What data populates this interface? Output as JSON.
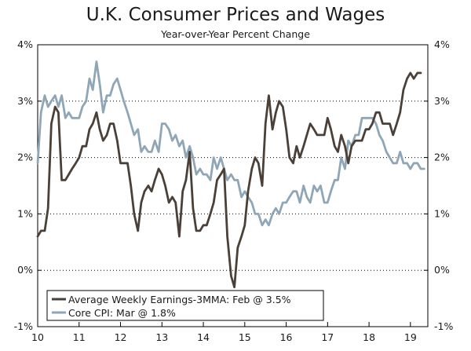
{
  "chart_data": {
    "type": "line",
    "title": "U.K. Consumer Prices and Wages",
    "subtitle": "Year-over-Year Percent Change",
    "xlabel": "",
    "ylabel": "",
    "xlim": [
      2010,
      2019.42
    ],
    "ylim": [
      -1,
      4
    ],
    "y_ticks": [
      4,
      3,
      2,
      1,
      0,
      -1
    ],
    "y_tick_labels": [
      "4%",
      "3%",
      "2%",
      "1%",
      "0%",
      "-1%"
    ],
    "x_tick_values": [
      2010,
      2011,
      2012,
      2013,
      2014,
      2015,
      2016,
      2017,
      2018,
      2019
    ],
    "x_tick_labels": [
      "10",
      "11",
      "12",
      "13",
      "14",
      "15",
      "16",
      "17",
      "18",
      "19"
    ],
    "legend_position": "bottom-left",
    "series": [
      {
        "name": "Average Weekly Earnings-3MMA: Feb @ 3.5%",
        "color": "#4a4038",
        "x": [
          2010.0,
          2010.08,
          2010.17,
          2010.25,
          2010.33,
          2010.42,
          2010.5,
          2010.58,
          2010.67,
          2010.75,
          2010.83,
          2010.92,
          2011.0,
          2011.08,
          2011.17,
          2011.25,
          2011.33,
          2011.42,
          2011.5,
          2011.58,
          2011.67,
          2011.75,
          2011.83,
          2011.92,
          2012.0,
          2012.08,
          2012.17,
          2012.25,
          2012.33,
          2012.42,
          2012.5,
          2012.58,
          2012.67,
          2012.75,
          2012.83,
          2012.92,
          2013.0,
          2013.08,
          2013.17,
          2013.25,
          2013.33,
          2013.42,
          2013.5,
          2013.58,
          2013.67,
          2013.75,
          2013.83,
          2013.92,
          2014.0,
          2014.08,
          2014.17,
          2014.25,
          2014.33,
          2014.42,
          2014.5,
          2014.58,
          2014.67,
          2014.75,
          2014.83,
          2014.92,
          2015.0,
          2015.08,
          2015.17,
          2015.25,
          2015.33,
          2015.42,
          2015.5,
          2015.58,
          2015.67,
          2015.75,
          2015.83,
          2015.92,
          2016.0,
          2016.08,
          2016.17,
          2016.25,
          2016.33,
          2016.42,
          2016.5,
          2016.58,
          2016.67,
          2016.75,
          2016.83,
          2016.92,
          2017.0,
          2017.08,
          2017.17,
          2017.25,
          2017.33,
          2017.42,
          2017.5,
          2017.58,
          2017.67,
          2017.75,
          2017.83,
          2017.92,
          2018.0,
          2018.08,
          2018.17,
          2018.25,
          2018.33,
          2018.42,
          2018.5,
          2018.58,
          2018.67,
          2018.75,
          2018.83,
          2018.92,
          2019.0,
          2019.08,
          2019.17,
          2019.25
        ],
        "values": [
          0.6,
          0.7,
          0.7,
          1.1,
          2.6,
          2.9,
          2.8,
          1.6,
          1.6,
          1.7,
          1.8,
          1.9,
          2.0,
          2.2,
          2.2,
          2.5,
          2.6,
          2.8,
          2.5,
          2.3,
          2.4,
          2.6,
          2.6,
          2.3,
          1.9,
          1.9,
          1.9,
          1.5,
          1.0,
          0.7,
          1.2,
          1.4,
          1.5,
          1.4,
          1.6,
          1.8,
          1.7,
          1.5,
          1.2,
          1.3,
          1.2,
          0.6,
          1.4,
          1.6,
          2.1,
          1.1,
          0.7,
          0.7,
          0.8,
          0.8,
          1.0,
          1.2,
          1.6,
          1.7,
          1.8,
          0.6,
          -0.1,
          -0.3,
          0.4,
          0.6,
          0.8,
          1.4,
          1.8,
          2.0,
          1.9,
          1.5,
          2.6,
          3.1,
          2.5,
          2.8,
          3.0,
          2.9,
          2.5,
          2.0,
          1.9,
          2.2,
          2.0,
          2.2,
          2.4,
          2.6,
          2.5,
          2.4,
          2.4,
          2.4,
          2.7,
          2.5,
          2.2,
          2.1,
          2.4,
          2.2,
          1.9,
          2.2,
          2.3,
          2.3,
          2.3,
          2.5,
          2.5,
          2.6,
          2.8,
          2.8,
          2.6,
          2.6,
          2.6,
          2.4,
          2.6,
          2.8,
          3.2,
          3.4,
          3.5,
          3.4,
          3.5,
          3.5
        ]
      },
      {
        "name": "Core CPI: Mar @ 1.8%",
        "color": "#8fa6b6",
        "x": [
          2010.0,
          2010.08,
          2010.17,
          2010.25,
          2010.33,
          2010.42,
          2010.5,
          2010.58,
          2010.67,
          2010.75,
          2010.83,
          2010.92,
          2011.0,
          2011.08,
          2011.17,
          2011.25,
          2011.33,
          2011.42,
          2011.5,
          2011.58,
          2011.67,
          2011.75,
          2011.83,
          2011.92,
          2012.0,
          2012.08,
          2012.17,
          2012.25,
          2012.33,
          2012.42,
          2012.5,
          2012.58,
          2012.67,
          2012.75,
          2012.83,
          2012.92,
          2013.0,
          2013.08,
          2013.17,
          2013.25,
          2013.33,
          2013.42,
          2013.5,
          2013.58,
          2013.67,
          2013.75,
          2013.83,
          2013.92,
          2014.0,
          2014.08,
          2014.17,
          2014.25,
          2014.33,
          2014.42,
          2014.5,
          2014.58,
          2014.67,
          2014.75,
          2014.83,
          2014.92,
          2015.0,
          2015.08,
          2015.17,
          2015.25,
          2015.33,
          2015.42,
          2015.5,
          2015.58,
          2015.67,
          2015.75,
          2015.83,
          2015.92,
          2016.0,
          2016.08,
          2016.17,
          2016.25,
          2016.33,
          2016.42,
          2016.5,
          2016.58,
          2016.67,
          2016.75,
          2016.83,
          2016.92,
          2017.0,
          2017.08,
          2017.17,
          2017.25,
          2017.33,
          2017.42,
          2017.5,
          2017.58,
          2017.67,
          2017.75,
          2017.83,
          2017.92,
          2018.0,
          2018.08,
          2018.17,
          2018.25,
          2018.33,
          2018.42,
          2018.5,
          2018.58,
          2018.67,
          2018.75,
          2018.83,
          2018.92,
          2019.0,
          2019.08,
          2019.17,
          2019.25,
          2019.33
        ],
        "values": [
          1.9,
          2.8,
          3.1,
          2.9,
          3.0,
          3.1,
          2.9,
          3.1,
          2.7,
          2.8,
          2.7,
          2.7,
          2.7,
          2.9,
          3.0,
          3.4,
          3.2,
          3.7,
          3.3,
          2.8,
          3.1,
          3.1,
          3.3,
          3.4,
          3.2,
          3.0,
          2.8,
          2.6,
          2.4,
          2.5,
          2.1,
          2.2,
          2.1,
          2.1,
          2.3,
          2.1,
          2.6,
          2.6,
          2.5,
          2.3,
          2.4,
          2.2,
          2.3,
          2.0,
          2.2,
          2.0,
          1.7,
          1.8,
          1.7,
          1.7,
          1.6,
          2.0,
          1.8,
          2.0,
          1.8,
          1.6,
          1.7,
          1.6,
          1.6,
          1.3,
          1.4,
          1.3,
          1.2,
          1.0,
          1.0,
          0.8,
          0.9,
          0.8,
          1.0,
          1.1,
          1.0,
          1.2,
          1.2,
          1.3,
          1.4,
          1.4,
          1.2,
          1.5,
          1.3,
          1.2,
          1.5,
          1.4,
          1.5,
          1.2,
          1.2,
          1.4,
          1.6,
          1.6,
          2.0,
          1.8,
          2.3,
          2.2,
          2.4,
          2.4,
          2.7,
          2.7,
          2.7,
          2.7,
          2.6,
          2.4,
          2.3,
          2.1,
          2.0,
          1.9,
          1.9,
          2.1,
          1.9,
          1.9,
          1.8,
          1.9,
          1.9,
          1.8,
          1.8
        ]
      }
    ]
  }
}
